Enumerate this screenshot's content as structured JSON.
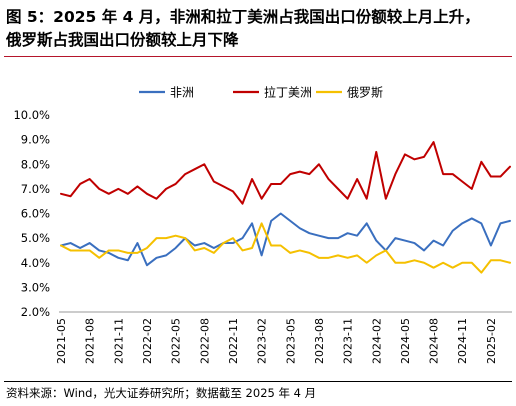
{
  "title_line1": "图 5：2025 年 4 月，非洲和拉丁美洲占我国出口份额较上月上升，",
  "title_line2": "俄罗斯占我国出口份额较上月下降",
  "source": "资料来源：Wind，光大证券研究所；数据截至 2025 年 4 月",
  "colors": {
    "africa": "#3a6fbf",
    "latam": "#c00000",
    "russia": "#f5c000",
    "accent_rule": "#b5152b"
  },
  "chart_data": {
    "type": "line",
    "title": "",
    "xlabel": "",
    "ylabel": "",
    "ylim": [
      2.0,
      10.0
    ],
    "yticks": [
      "10.0%",
      "9.0%",
      "8.0%",
      "7.0%",
      "6.0%",
      "5.0%",
      "4.0%",
      "3.0%",
      "2.0%"
    ],
    "ytick_values": [
      10,
      9,
      8,
      7,
      6,
      5,
      4,
      3,
      2
    ],
    "xtick_labels": [
      "2021-05",
      "2021-08",
      "2021-11",
      "2022-02",
      "2022-05",
      "2022-08",
      "2022-11",
      "2023-02",
      "2023-05",
      "2023-08",
      "2023-11",
      "2024-02",
      "2024-05",
      "2024-08",
      "2024-11",
      "2025-02"
    ],
    "legend_position": "top",
    "x": [
      "2021-05",
      "2021-06",
      "2021-07",
      "2021-08",
      "2021-09",
      "2021-10",
      "2021-11",
      "2021-12",
      "2022-01",
      "2022-02",
      "2022-03",
      "2022-04",
      "2022-05",
      "2022-06",
      "2022-07",
      "2022-08",
      "2022-09",
      "2022-10",
      "2022-11",
      "2022-12",
      "2023-01",
      "2023-02",
      "2023-03",
      "2023-04",
      "2023-05",
      "2023-06",
      "2023-07",
      "2023-08",
      "2023-09",
      "2023-10",
      "2023-11",
      "2023-12",
      "2024-01",
      "2024-02",
      "2024-03",
      "2024-04",
      "2024-05",
      "2024-06",
      "2024-07",
      "2024-08",
      "2024-09",
      "2024-10",
      "2024-11",
      "2024-12",
      "2025-01",
      "2025-02",
      "2025-03",
      "2025-04"
    ],
    "series": [
      {
        "name": "非洲",
        "color_key": "africa",
        "values": [
          4.7,
          4.8,
          4.6,
          4.8,
          4.5,
          4.4,
          4.2,
          4.1,
          4.8,
          3.9,
          4.2,
          4.3,
          4.6,
          5.0,
          4.7,
          4.8,
          4.6,
          4.8,
          4.8,
          5.0,
          5.6,
          4.3,
          5.7,
          6.0,
          5.7,
          5.4,
          5.2,
          5.1,
          5.0,
          5.0,
          5.2,
          5.1,
          5.6,
          4.9,
          4.5,
          5.0,
          4.9,
          4.8,
          4.5,
          4.9,
          4.7,
          5.3,
          5.6,
          5.8,
          5.6,
          4.7,
          5.6,
          5.7
        ]
      },
      {
        "name": "拉丁美洲",
        "color_key": "latam",
        "values": [
          6.8,
          6.7,
          7.2,
          7.4,
          7.0,
          6.8,
          7.0,
          6.8,
          7.1,
          6.8,
          6.6,
          7.0,
          7.2,
          7.6,
          7.8,
          8.0,
          7.3,
          7.1,
          6.9,
          6.4,
          7.4,
          6.6,
          7.2,
          7.2,
          7.6,
          7.7,
          7.6,
          8.0,
          7.4,
          7.0,
          6.6,
          7.4,
          6.6,
          8.5,
          6.6,
          7.6,
          8.4,
          8.2,
          8.3,
          8.9,
          7.6,
          7.6,
          7.3,
          7.0,
          8.1,
          7.5,
          7.5,
          7.9
        ]
      },
      {
        "name": "俄罗斯",
        "color_key": "russia",
        "values": [
          4.7,
          4.5,
          4.5,
          4.5,
          4.2,
          4.5,
          4.5,
          4.4,
          4.4,
          4.6,
          5.0,
          5.0,
          5.1,
          5.0,
          4.5,
          4.6,
          4.4,
          4.8,
          5.0,
          4.5,
          4.6,
          5.6,
          4.7,
          4.7,
          4.4,
          4.5,
          4.4,
          4.2,
          4.2,
          4.3,
          4.2,
          4.3,
          4.0,
          4.3,
          4.5,
          4.0,
          4.0,
          4.1,
          4.0,
          3.8,
          4.0,
          3.8,
          4.0,
          4.0,
          3.6,
          4.1,
          4.1,
          4.0
        ]
      }
    ]
  }
}
